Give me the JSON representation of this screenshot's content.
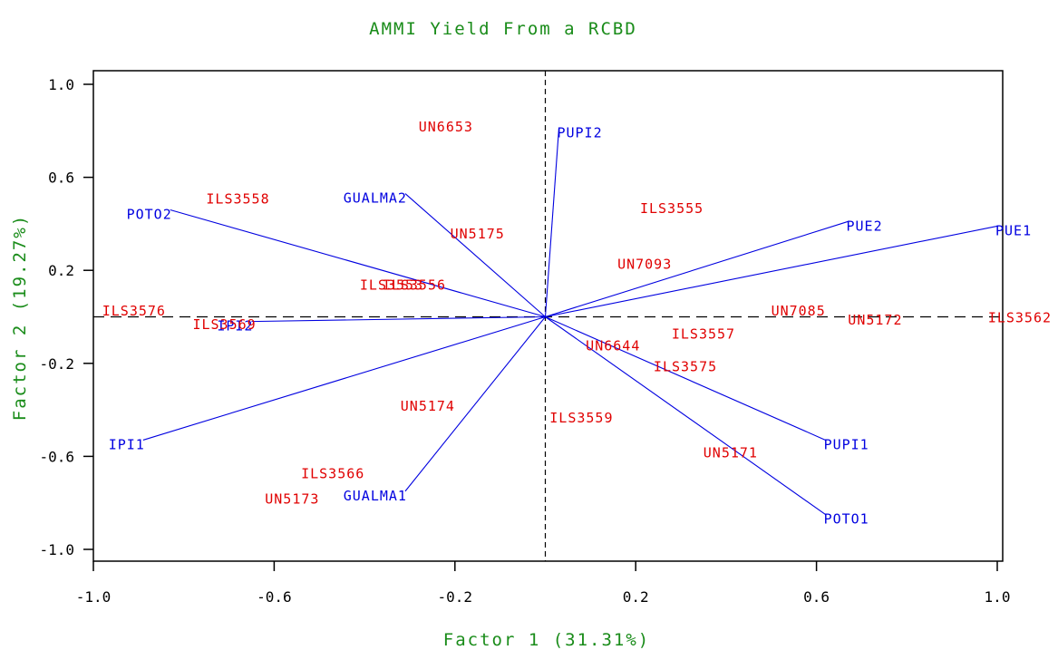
{
  "chart_data": {
    "type": "scatter",
    "title": "AMMI Yield From a RCBD",
    "xlabel": "Factor 1 (31.31%)",
    "ylabel": "Factor 2 (19.27%)",
    "xlim": [
      -1.0,
      1.0
    ],
    "ylim": [
      -1.0,
      1.0
    ],
    "xticks": [
      "-1.0",
      "-0.6",
      "-0.2",
      "0.2",
      "0.6",
      "1.0"
    ],
    "yticks": [
      "1.0",
      "0.6",
      "0.2",
      "-0.2",
      "-0.6",
      "-1.0"
    ],
    "reference_lines": {
      "x": 0,
      "y": 0
    },
    "colors": {
      "environment": "#0000e0",
      "genotype": "#e00000",
      "text": "#1a8c1a",
      "axis": "#000000"
    },
    "environments": [
      {
        "label": "PUPI2",
        "x": 0.03,
        "y": 0.81
      },
      {
        "label": "GUALMA2",
        "x": -0.31,
        "y": 0.53
      },
      {
        "label": "POTO2",
        "x": -0.83,
        "y": 0.46
      },
      {
        "label": "PUE2",
        "x": 0.67,
        "y": 0.41
      },
      {
        "label": "PUE1",
        "x": 1.0,
        "y": 0.39
      },
      {
        "label": "IPI2",
        "x": -0.65,
        "y": -0.02
      },
      {
        "label": "IPI1",
        "x": -0.89,
        "y": -0.53
      },
      {
        "label": "GUALMA1",
        "x": -0.31,
        "y": -0.75
      },
      {
        "label": "PUPI1",
        "x": 0.62,
        "y": -0.53
      },
      {
        "label": "POTO1",
        "x": 0.62,
        "y": -0.85
      }
    ],
    "genotypes": [
      {
        "label": "UN6653",
        "x": -0.22,
        "y": 0.82
      },
      {
        "label": "ILS3558",
        "x": -0.68,
        "y": 0.51
      },
      {
        "label": "ILS3555",
        "x": 0.28,
        "y": 0.47
      },
      {
        "label": "UN5175",
        "x": -0.15,
        "y": 0.36
      },
      {
        "label": "UN7093",
        "x": 0.22,
        "y": 0.23
      },
      {
        "label": "ILS3556",
        "x": -0.29,
        "y": 0.14
      },
      {
        "label": "ILS3553",
        "x": -0.34,
        "y": 0.14
      },
      {
        "label": "ILS3576",
        "x": -0.91,
        "y": 0.03
      },
      {
        "label": "ILS3569",
        "x": -0.71,
        "y": -0.03
      },
      {
        "label": "UN7085",
        "x": 0.56,
        "y": 0.03
      },
      {
        "label": "UN5172",
        "x": 0.73,
        "y": -0.01
      },
      {
        "label": "ILS3562",
        "x": 1.05,
        "y": 0.0
      },
      {
        "label": "ILS3557",
        "x": 0.35,
        "y": -0.07
      },
      {
        "label": "UN6644",
        "x": 0.15,
        "y": -0.12
      },
      {
        "label": "ILS3575",
        "x": 0.31,
        "y": -0.21
      },
      {
        "label": "UN5174",
        "x": -0.26,
        "y": -0.38
      },
      {
        "label": "ILS3559",
        "x": 0.08,
        "y": -0.43
      },
      {
        "label": "UN5171",
        "x": 0.41,
        "y": -0.58
      },
      {
        "label": "ILS3566",
        "x": -0.47,
        "y": -0.67
      },
      {
        "label": "UN5173",
        "x": -0.56,
        "y": -0.78
      }
    ]
  }
}
